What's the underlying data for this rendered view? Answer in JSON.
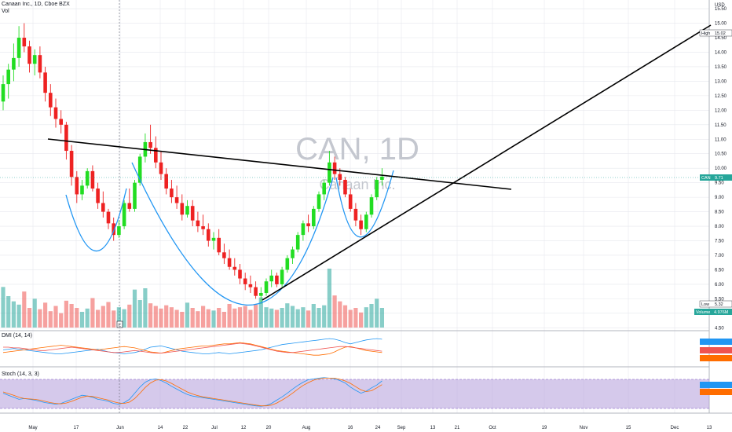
{
  "header": {
    "instrument": "Canaan Inc., 1D, Cboe BZX",
    "volume_label": "Vol"
  },
  "watermark": {
    "symbol": "CAN, 1D",
    "name": "Canaan Inc."
  },
  "panes": {
    "dmi_label": "DMI (14, 14)",
    "stoch_label": "Stoch (14, 3, 3)"
  },
  "colors": {
    "up": "#26a69a",
    "down": "#ef5350",
    "up_bright": "#22dd22",
    "down_bright": "#ee2222",
    "curve": "#2196f3",
    "trendline": "#000000",
    "stoch_band": "#b39ddb",
    "grid": "#e6e8ee",
    "di_plus": "#2196f3",
    "di_minus": "#ff6d00",
    "adx": "#ef5350"
  },
  "chart_data": {
    "type": "candlestick",
    "currency": "USD",
    "y_axis": {
      "range": [
        4.4,
        15.8
      ],
      "ticks": [
        "4.50",
        "5.00",
        "5.50",
        "6.00",
        "6.50",
        "7.00",
        "7.50",
        "8.00",
        "8.50",
        "9.00",
        "9.50",
        "10.00",
        "10.50",
        "11.00",
        "11.50",
        "12.00",
        "12.50",
        "13.00",
        "13.50",
        "14.00",
        "14.50",
        "15.00",
        "15.50"
      ]
    },
    "x_axis": {
      "labels": [
        "May",
        "17",
        "Jun",
        "14",
        "22",
        "Jul",
        "12",
        "20",
        "Aug",
        "16",
        "24",
        "Sep",
        "13",
        "21",
        "Oct",
        "19",
        "Nov",
        "15",
        "Dec",
        "13"
      ]
    },
    "markers": {
      "high": {
        "label": "High",
        "value": "15.02"
      },
      "last": {
        "label": "CAN",
        "value": "9.71"
      },
      "low": {
        "label": "Low",
        "value": "5.32"
      },
      "volume": {
        "label": "Volume",
        "value": "4.976M"
      }
    },
    "candles": [
      [
        12.3,
        13.2,
        12.0,
        12.9
      ],
      [
        12.9,
        13.6,
        12.4,
        13.4
      ],
      [
        13.4,
        14.3,
        13.0,
        13.8
      ],
      [
        13.8,
        14.9,
        13.5,
        14.5
      ],
      [
        14.5,
        15.0,
        14.0,
        14.2
      ],
      [
        14.2,
        14.4,
        13.3,
        13.6
      ],
      [
        13.6,
        14.1,
        13.2,
        13.9
      ],
      [
        13.9,
        14.2,
        13.1,
        13.3
      ],
      [
        13.3,
        13.5,
        12.3,
        12.6
      ],
      [
        12.6,
        12.9,
        11.8,
        12.1
      ],
      [
        12.1,
        12.4,
        11.4,
        11.7
      ],
      [
        11.7,
        12.0,
        11.2,
        11.5
      ],
      [
        11.5,
        11.6,
        10.3,
        10.6
      ],
      [
        10.6,
        10.8,
        9.4,
        9.7
      ],
      [
        9.7,
        9.9,
        8.8,
        9.1
      ],
      [
        9.1,
        9.6,
        8.9,
        9.4
      ],
      [
        9.4,
        10.0,
        9.3,
        9.9
      ],
      [
        9.9,
        10.1,
        9.2,
        9.3
      ],
      [
        9.3,
        9.5,
        8.6,
        8.8
      ],
      [
        8.8,
        9.2,
        8.3,
        8.5
      ],
      [
        8.5,
        8.6,
        7.9,
        8.1
      ],
      [
        8.1,
        8.3,
        7.5,
        7.7
      ],
      [
        7.7,
        8.2,
        7.6,
        8.0
      ],
      [
        8.0,
        8.9,
        7.9,
        8.8
      ],
      [
        8.8,
        9.3,
        8.5,
        8.6
      ],
      [
        8.6,
        9.6,
        8.5,
        9.5
      ],
      [
        9.5,
        10.5,
        9.4,
        10.4
      ],
      [
        10.4,
        11.2,
        10.2,
        10.9
      ],
      [
        10.9,
        11.5,
        10.5,
        10.7
      ],
      [
        10.7,
        11.1,
        10.0,
        10.2
      ],
      [
        10.2,
        10.6,
        9.6,
        9.8
      ],
      [
        9.8,
        10.0,
        9.1,
        9.3
      ],
      [
        9.3,
        9.6,
        8.8,
        9.0
      ],
      [
        9.0,
        9.4,
        8.6,
        8.8
      ],
      [
        8.8,
        9.1,
        8.2,
        8.4
      ],
      [
        8.4,
        8.9,
        8.3,
        8.7
      ],
      [
        8.7,
        8.9,
        8.0,
        8.2
      ],
      [
        8.2,
        8.5,
        7.8,
        8.0
      ],
      [
        8.0,
        8.4,
        7.7,
        7.9
      ],
      [
        7.9,
        8.1,
        7.3,
        7.5
      ],
      [
        7.5,
        7.8,
        7.2,
        7.6
      ],
      [
        7.6,
        7.9,
        7.0,
        7.1
      ],
      [
        7.1,
        7.4,
        6.7,
        6.9
      ],
      [
        6.9,
        7.2,
        6.5,
        6.6
      ],
      [
        6.6,
        6.9,
        6.3,
        6.5
      ],
      [
        6.5,
        6.7,
        6.0,
        6.2
      ],
      [
        6.2,
        6.4,
        5.8,
        6.0
      ],
      [
        6.0,
        6.3,
        5.7,
        5.9
      ],
      [
        5.9,
        6.1,
        5.5,
        5.6
      ],
      [
        5.6,
        5.9,
        5.32,
        5.7
      ],
      [
        5.7,
        6.2,
        5.6,
        6.1
      ],
      [
        6.1,
        6.5,
        5.9,
        6.3
      ],
      [
        6.3,
        6.4,
        5.9,
        6.0
      ],
      [
        6.0,
        6.6,
        5.9,
        6.5
      ],
      [
        6.5,
        7.0,
        6.4,
        6.9
      ],
      [
        6.9,
        7.3,
        6.7,
        7.2
      ],
      [
        7.2,
        7.8,
        7.1,
        7.7
      ],
      [
        7.7,
        8.2,
        7.5,
        8.1
      ],
      [
        8.1,
        8.4,
        7.8,
        8.0
      ],
      [
        8.0,
        8.7,
        7.9,
        8.6
      ],
      [
        8.6,
        9.2,
        8.5,
        9.1
      ],
      [
        9.1,
        9.6,
        8.9,
        9.5
      ],
      [
        9.5,
        10.6,
        9.4,
        10.2
      ],
      [
        10.2,
        10.4,
        9.6,
        9.8
      ],
      [
        9.8,
        10.0,
        9.4,
        9.6
      ],
      [
        9.6,
        9.7,
        9.0,
        9.1
      ],
      [
        9.1,
        9.3,
        8.5,
        8.6
      ],
      [
        8.6,
        8.8,
        8.0,
        8.2
      ],
      [
        8.2,
        8.4,
        7.7,
        7.9
      ],
      [
        7.9,
        8.5,
        7.8,
        8.4
      ],
      [
        8.4,
        9.1,
        8.3,
        9.0
      ],
      [
        9.0,
        9.7,
        8.9,
        9.6
      ],
      [
        9.6,
        10.0,
        9.4,
        9.71
      ]
    ],
    "volume": [
      62,
      48,
      40,
      35,
      55,
      30,
      44,
      28,
      38,
      25,
      33,
      22,
      41,
      36,
      30,
      24,
      29,
      45,
      27,
      33,
      39,
      26,
      31,
      28,
      35,
      58,
      42,
      60,
      37,
      33,
      29,
      34,
      31,
      27,
      24,
      38,
      30,
      25,
      33,
      28,
      26,
      30,
      24,
      36,
      29,
      31,
      33,
      27,
      35,
      46,
      31,
      29,
      27,
      30,
      37,
      33,
      28,
      31,
      26,
      36,
      30,
      34,
      90,
      49,
      40,
      34,
      27,
      30,
      23,
      31,
      36,
      44,
      30
    ],
    "dmi": {
      "plus_di": [
        22,
        23,
        24,
        23,
        22,
        21,
        20,
        19,
        18,
        17,
        16,
        16,
        17,
        18,
        19,
        20,
        21,
        22,
        23,
        21,
        19,
        18,
        17,
        16,
        17,
        18,
        20,
        23,
        26,
        27,
        28,
        26,
        24,
        22,
        20,
        19,
        18,
        17,
        16,
        16,
        17,
        18,
        17,
        16,
        17,
        18,
        19,
        20,
        21,
        22,
        24,
        26,
        28,
        30,
        31,
        32,
        33,
        34,
        35,
        36,
        37,
        38,
        39,
        38,
        36,
        33,
        31,
        33,
        35,
        37,
        38,
        39,
        38
      ],
      "minus_di": [
        18,
        19,
        20,
        21,
        22,
        23,
        24,
        25,
        26,
        27,
        28,
        29,
        28,
        27,
        26,
        25,
        24,
        23,
        22,
        23,
        24,
        25,
        26,
        27,
        26,
        25,
        23,
        21,
        19,
        18,
        17,
        19,
        21,
        23,
        24,
        25,
        26,
        27,
        28,
        28,
        29,
        30,
        31,
        31,
        32,
        33,
        32,
        31,
        29,
        27,
        25,
        23,
        21,
        20,
        19,
        18,
        17,
        16,
        15,
        14,
        14,
        15,
        16,
        19,
        23,
        26,
        27,
        25,
        23,
        21,
        20,
        19,
        18
      ],
      "adx": [
        26,
        26,
        25,
        25,
        24,
        23,
        22,
        21,
        21,
        22,
        23,
        24,
        25,
        26,
        25,
        24,
        23,
        22,
        21,
        20,
        19,
        18,
        18,
        19,
        20,
        21,
        20,
        19,
        18,
        17,
        17,
        18,
        19,
        20,
        21,
        22,
        23,
        24,
        25,
        26,
        27,
        28,
        29,
        30,
        31,
        32,
        31,
        30,
        28,
        26,
        24,
        22,
        20,
        19,
        18,
        18,
        19,
        20,
        21,
        22,
        23,
        24,
        25,
        26,
        27,
        27,
        26,
        25,
        24,
        23,
        22,
        21,
        20
      ]
    },
    "stoch": {
      "k": [
        45,
        40,
        35,
        30,
        32,
        30,
        28,
        25,
        22,
        20,
        18,
        20,
        25,
        30,
        35,
        40,
        38,
        35,
        30,
        28,
        25,
        20,
        18,
        22,
        30,
        45,
        60,
        72,
        78,
        80,
        76,
        70,
        62,
        55,
        48,
        42,
        38,
        36,
        34,
        32,
        30,
        28,
        26,
        24,
        22,
        20,
        18,
        16,
        14,
        13,
        15,
        20,
        28,
        36,
        45,
        55,
        64,
        72,
        78,
        80,
        82,
        83,
        82,
        80,
        76,
        70,
        60,
        52,
        45,
        50,
        58,
        65,
        75
      ],
      "d": [
        48,
        44,
        40,
        35,
        32,
        31,
        30,
        28,
        25,
        22,
        20,
        19,
        21,
        25,
        30,
        35,
        38,
        37,
        34,
        31,
        28,
        24,
        21,
        20,
        23,
        32,
        45,
        59,
        70,
        77,
        78,
        75,
        69,
        62,
        55,
        48,
        43,
        39,
        36,
        34,
        32,
        30,
        28,
        26,
        24,
        22,
        20,
        18,
        16,
        14,
        14,
        16,
        21,
        28,
        36,
        45,
        55,
        64,
        71,
        77,
        80,
        82,
        82,
        82,
        79,
        75,
        69,
        61,
        53,
        49,
        51,
        58,
        66
      ]
    }
  }
}
